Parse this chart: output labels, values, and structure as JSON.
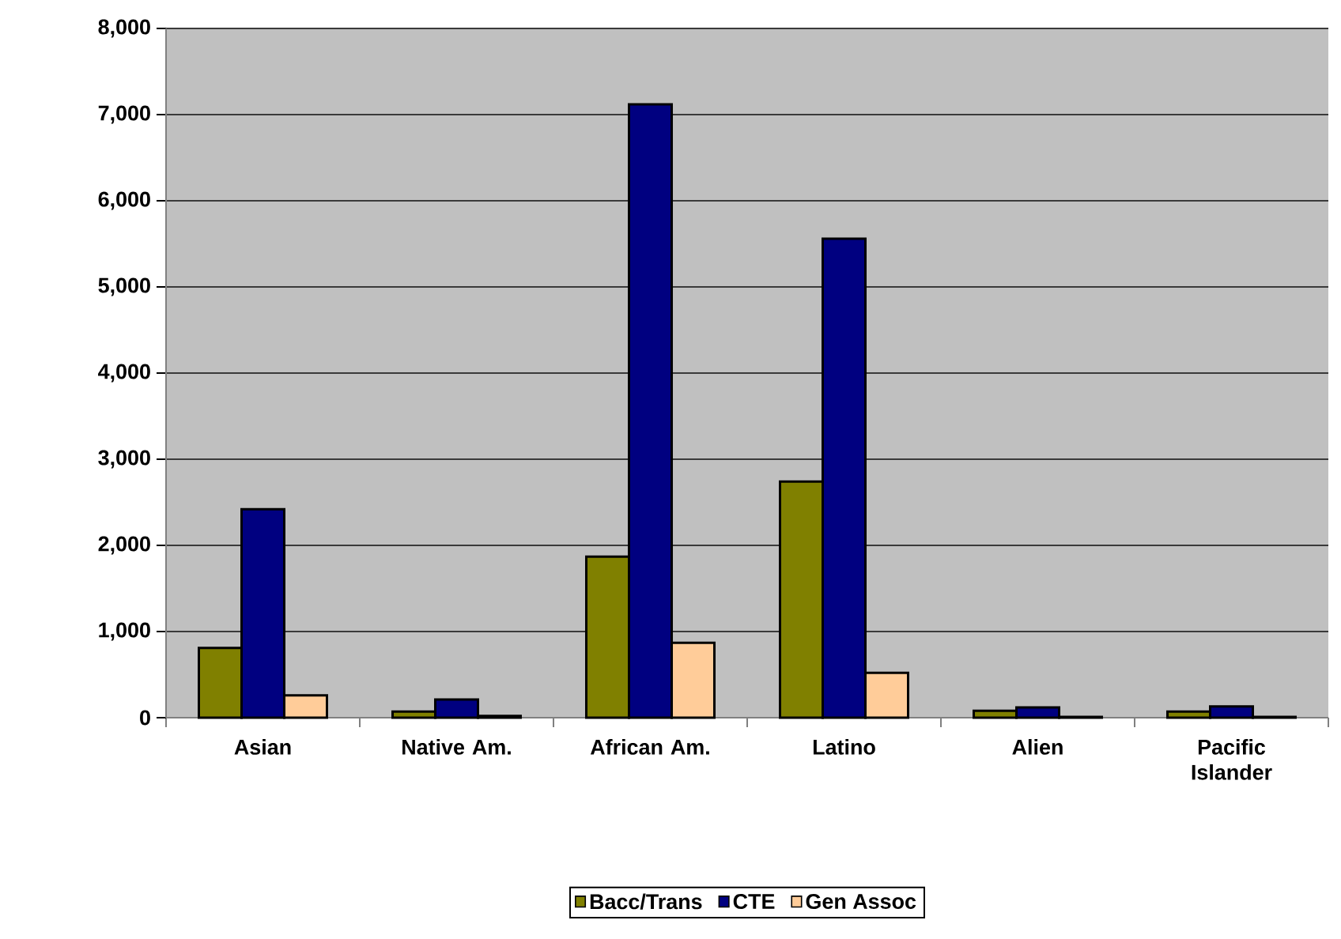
{
  "chart_data": {
    "type": "bar",
    "categories": [
      "Asian",
      "Native Am.",
      "African Am.",
      "Latino",
      "Alien",
      "Pacific Islander"
    ],
    "series": [
      {
        "name": "Bacc/Trans",
        "color": "#808000",
        "values": [
          810,
          70,
          1870,
          2740,
          80,
          70
        ]
      },
      {
        "name": "CTE",
        "color": "#000080",
        "values": [
          2420,
          210,
          7120,
          5560,
          120,
          130
        ]
      },
      {
        "name": "Gen Assoc",
        "color": "#ffcc99",
        "values": [
          260,
          20,
          870,
          520,
          10,
          10
        ]
      }
    ],
    "ylim": [
      0,
      8000
    ],
    "yticks": [
      {
        "value": 0,
        "label": "0"
      },
      {
        "value": 1000,
        "label": "1,000"
      },
      {
        "value": 2000,
        "label": "2,000"
      },
      {
        "value": 3000,
        "label": "3,000"
      },
      {
        "value": 4000,
        "label": "4,000"
      },
      {
        "value": 5000,
        "label": "5,000"
      },
      {
        "value": 6000,
        "label": "6,000"
      },
      {
        "value": 7000,
        "label": "7,000"
      },
      {
        "value": 8000,
        "label": "8,000"
      }
    ],
    "grid": "y",
    "legend": "bottom"
  }
}
